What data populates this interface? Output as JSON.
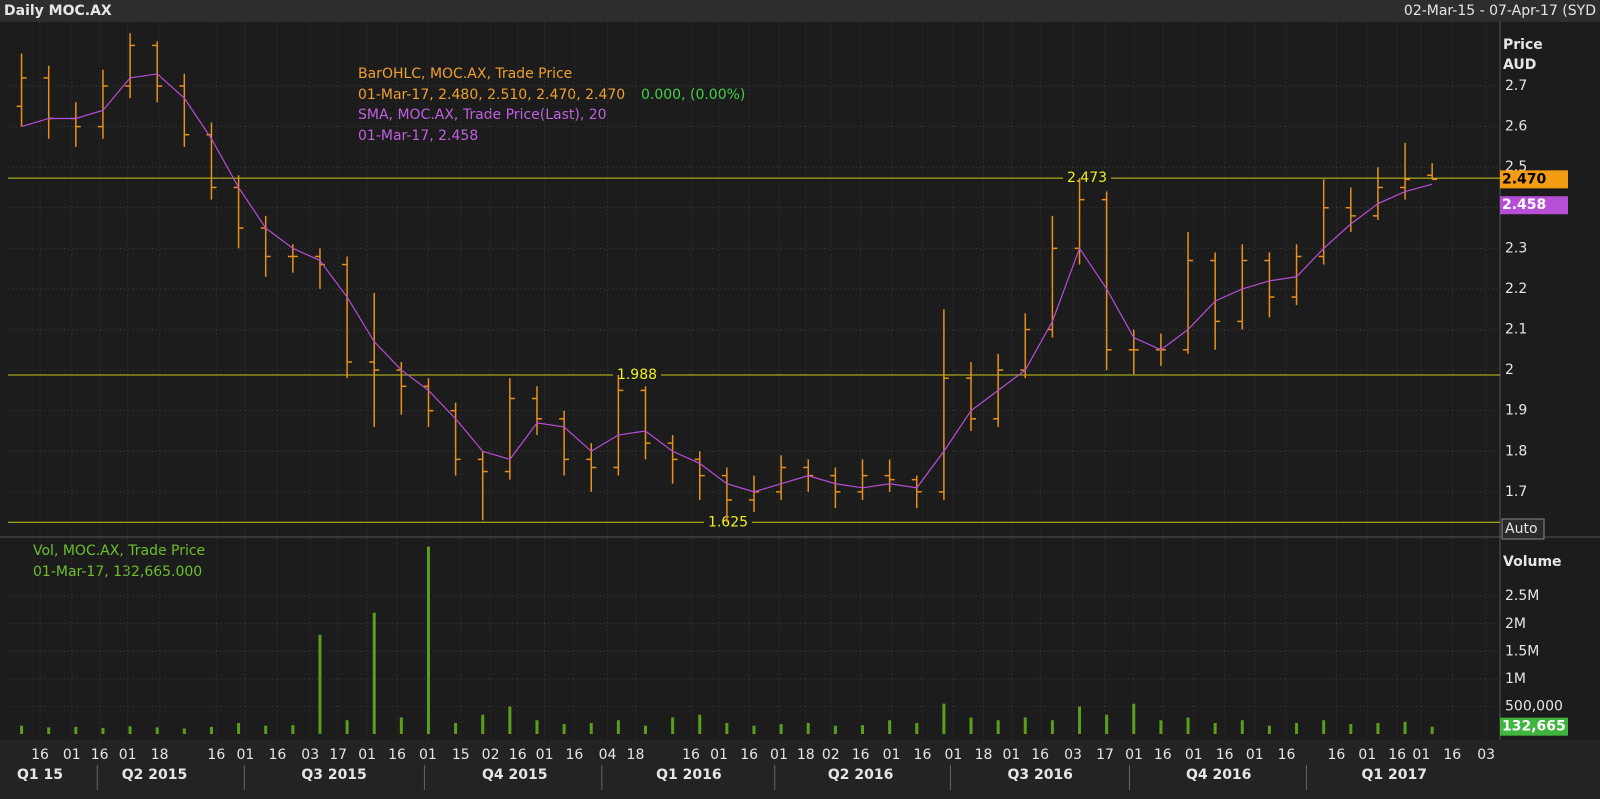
{
  "header": {
    "title": "Daily MOC.AX",
    "range": "02-Mar-15 - 07-Apr-17 (SYD"
  },
  "chart_data": [
    {
      "type": "ohlc",
      "axis_title": [
        "Price",
        "AUD"
      ],
      "auto_label": "Auto",
      "legend": [
        "BarOHLC, MOC.AX, Trade Price",
        "01-Mar-17, 2.480, 2.510, 2.470, 2.470",
        "0.000, (0.00%)",
        "SMA, MOC.AX, Trade Price(Last),  20",
        "01-Mar-17, 2.458"
      ],
      "color": "#e8901a",
      "open": [
        2.65,
        2.72,
        2.62,
        2.6,
        2.7,
        2.8,
        2.7,
        2.58,
        2.45,
        2.35,
        2.28,
        2.28,
        2.26,
        2.02,
        2.0,
        1.96,
        1.9,
        1.78,
        1.75,
        1.93,
        1.88,
        1.78,
        1.76,
        1.95,
        1.82,
        1.78,
        1.74,
        1.68,
        1.7,
        1.76,
        1.74,
        1.7,
        1.74,
        1.73,
        1.7,
        1.98,
        1.88,
        2.0,
        2.1,
        2.3,
        2.42,
        2.05,
        2.05,
        2.05,
        2.27,
        2.12,
        2.27,
        2.18,
        2.28,
        2.4,
        2.38,
        2.45,
        2.48
      ],
      "high": [
        2.78,
        2.75,
        2.66,
        2.74,
        2.83,
        2.81,
        2.73,
        2.61,
        2.48,
        2.38,
        2.31,
        2.3,
        2.28,
        2.19,
        2.02,
        1.98,
        1.92,
        1.8,
        1.98,
        1.96,
        1.9,
        1.82,
        1.988,
        1.96,
        1.84,
        1.8,
        1.76,
        1.74,
        1.79,
        1.78,
        1.76,
        1.78,
        1.78,
        1.74,
        2.15,
        2.02,
        2.04,
        2.14,
        2.38,
        2.473,
        2.44,
        2.1,
        2.09,
        2.34,
        2.29,
        2.31,
        2.29,
        2.31,
        2.47,
        2.45,
        2.5,
        2.56,
        2.51
      ],
      "low": [
        2.6,
        2.57,
        2.55,
        2.57,
        2.67,
        2.66,
        2.55,
        2.42,
        2.3,
        2.23,
        2.24,
        2.2,
        1.98,
        1.86,
        1.89,
        1.86,
        1.74,
        1.63,
        1.73,
        1.84,
        1.74,
        1.7,
        1.74,
        1.78,
        1.72,
        1.68,
        1.625,
        1.65,
        1.68,
        1.7,
        1.66,
        1.68,
        1.7,
        1.66,
        1.68,
        1.85,
        1.86,
        1.98,
        2.08,
        2.26,
        2.0,
        1.99,
        2.01,
        2.04,
        2.05,
        2.1,
        2.13,
        2.16,
        2.26,
        2.34,
        2.37,
        2.42,
        2.47
      ],
      "close": [
        2.72,
        2.62,
        2.6,
        2.7,
        2.8,
        2.7,
        2.58,
        2.45,
        2.35,
        2.28,
        2.28,
        2.26,
        2.02,
        2.0,
        1.96,
        1.9,
        1.78,
        1.75,
        1.93,
        1.88,
        1.78,
        1.76,
        1.95,
        1.82,
        1.78,
        1.74,
        1.68,
        1.7,
        1.76,
        1.74,
        1.7,
        1.74,
        1.73,
        1.7,
        1.98,
        1.88,
        2.0,
        2.1,
        2.3,
        2.42,
        2.05,
        2.05,
        2.05,
        2.27,
        2.12,
        2.27,
        2.18,
        2.28,
        2.4,
        2.38,
        2.45,
        2.47,
        2.47
      ],
      "sma": {
        "color": "#b64ed6",
        "values": [
          2.6,
          2.62,
          2.62,
          2.64,
          2.72,
          2.73,
          2.67,
          2.57,
          2.45,
          2.35,
          2.3,
          2.27,
          2.18,
          2.07,
          2.0,
          1.95,
          1.88,
          1.8,
          1.78,
          1.87,
          1.86,
          1.8,
          1.84,
          1.85,
          1.8,
          1.77,
          1.72,
          1.7,
          1.72,
          1.74,
          1.72,
          1.71,
          1.72,
          1.71,
          1.8,
          1.9,
          1.95,
          2.0,
          2.12,
          2.3,
          2.2,
          2.08,
          2.05,
          2.1,
          2.17,
          2.2,
          2.22,
          2.23,
          2.3,
          2.36,
          2.41,
          2.44,
          2.458
        ]
      },
      "hlines": [
        2.473,
        1.988,
        1.625
      ],
      "tags": [
        {
          "value": 2.47,
          "label": "2.470",
          "color": "#f39c12"
        },
        {
          "value": 2.458,
          "label": "2.458",
          "color": "#b64ed6"
        }
      ],
      "xlim": [
        0,
        55
      ],
      "ylim": [
        1.606,
        2.838
      ],
      "yticks": [
        1.7,
        1.8,
        1.9,
        2,
        2.1,
        2.2,
        2.3,
        2.4,
        2.5,
        2.6,
        2.7
      ],
      "grid": true
    },
    {
      "type": "bar",
      "axis_title": "Volume",
      "legend": [
        "Vol, MOC.AX, Trade Price",
        "01-Mar-17, 132,665.000"
      ],
      "color": "#5a9e1a",
      "values": [
        150000,
        120000,
        130000,
        110000,
        140000,
        120000,
        100000,
        130000,
        200000,
        150000,
        160000,
        1800000,
        250000,
        2200000,
        300000,
        3400000,
        200000,
        350000,
        500000,
        250000,
        180000,
        200000,
        250000,
        150000,
        300000,
        350000,
        200000,
        150000,
        180000,
        200000,
        150000,
        160000,
        250000,
        200000,
        550000,
        300000,
        250000,
        300000,
        250000,
        500000,
        350000,
        550000,
        250000,
        300000,
        200000,
        250000,
        150000,
        200000,
        250000,
        180000,
        200000,
        220000,
        132665
      ],
      "tag": {
        "value": 132665,
        "label": "132,665",
        "color": "#3fb43f"
      },
      "xlim": [
        0,
        55
      ],
      "ylim": [
        0,
        3430000
      ],
      "yticks": [
        {
          "value": 500000,
          "label": "500,000"
        },
        {
          "value": 1000000,
          "label": "1M"
        },
        {
          "value": 1500000,
          "label": "1.5M"
        },
        {
          "value": 2000000,
          "label": "2M"
        },
        {
          "value": 2500000,
          "label": "2.5M"
        }
      ],
      "xticks": [
        {
          "value": 1.18,
          "label": "16"
        },
        {
          "value": 2.35,
          "label": "01"
        },
        {
          "value": 3.38,
          "label": "16"
        },
        {
          "value": 4.41,
          "label": "01"
        },
        {
          "value": 5.59,
          "label": "18"
        },
        {
          "value": 7.68,
          "label": "16"
        },
        {
          "value": 8.75,
          "label": "01"
        },
        {
          "value": 9.93,
          "label": "16"
        },
        {
          "value": 11.14,
          "label": "03"
        },
        {
          "value": 12.17,
          "label": "17"
        },
        {
          "value": 13.24,
          "label": "01"
        },
        {
          "value": 14.34,
          "label": "16"
        },
        {
          "value": 15.48,
          "label": "01"
        },
        {
          "value": 16.69,
          "label": "15"
        },
        {
          "value": 17.79,
          "label": "02"
        },
        {
          "value": 18.79,
          "label": "16"
        },
        {
          "value": 19.78,
          "label": "01"
        },
        {
          "value": 20.88,
          "label": "16"
        },
        {
          "value": 22.1,
          "label": "04"
        },
        {
          "value": 23.13,
          "label": "18"
        },
        {
          "value": 25.18,
          "label": "16"
        },
        {
          "value": 26.21,
          "label": "01"
        },
        {
          "value": 27.32,
          "label": "16"
        },
        {
          "value": 28.42,
          "label": "01"
        },
        {
          "value": 29.41,
          "label": "18"
        },
        {
          "value": 30.33,
          "label": "02"
        },
        {
          "value": 31.43,
          "label": "16"
        },
        {
          "value": 32.57,
          "label": "01"
        },
        {
          "value": 33.71,
          "label": "16"
        },
        {
          "value": 34.85,
          "label": "01"
        },
        {
          "value": 35.96,
          "label": "18"
        },
        {
          "value": 36.99,
          "label": "01"
        },
        {
          "value": 38.05,
          "label": "16"
        },
        {
          "value": 39.26,
          "label": "03"
        },
        {
          "value": 40.44,
          "label": "17"
        },
        {
          "value": 41.51,
          "label": "01"
        },
        {
          "value": 42.57,
          "label": "16"
        },
        {
          "value": 43.71,
          "label": "01"
        },
        {
          "value": 44.85,
          "label": "16"
        },
        {
          "value": 45.96,
          "label": "01"
        },
        {
          "value": 47.13,
          "label": "16"
        },
        {
          "value": 48.97,
          "label": "16"
        },
        {
          "value": 50.11,
          "label": "01"
        },
        {
          "value": 51.21,
          "label": "16"
        },
        {
          "value": 52.1,
          "label": "01"
        },
        {
          "value": 53.24,
          "label": "16"
        },
        {
          "value": 54.49,
          "label": "03"
        }
      ],
      "xgroups": [
        {
          "value": 1.18,
          "label": "Q1 15"
        },
        {
          "value": 5.4,
          "label": "Q2 2015"
        },
        {
          "value": 12.02,
          "label": "Q3 2015"
        },
        {
          "value": 18.68,
          "label": "Q4 2015"
        },
        {
          "value": 25.1,
          "label": "Q1 2016"
        },
        {
          "value": 31.43,
          "label": "Q2 2016"
        },
        {
          "value": 38.05,
          "label": "Q3 2016"
        },
        {
          "value": 44.63,
          "label": "Q4 2016"
        },
        {
          "value": 51.1,
          "label": "Q1 2017"
        }
      ],
      "grid": true
    }
  ]
}
